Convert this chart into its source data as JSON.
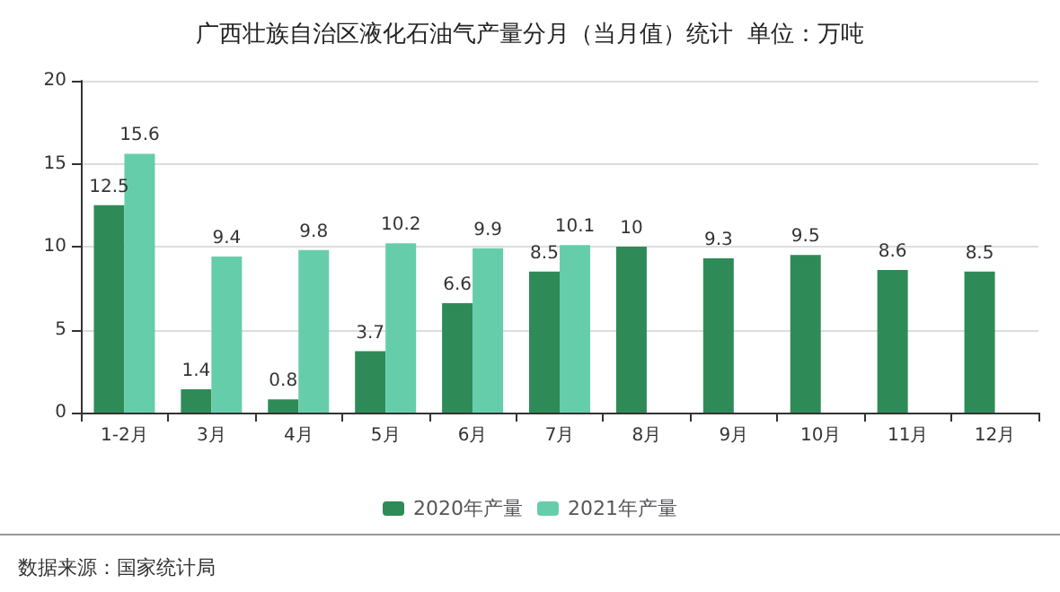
{
  "chart_data": {
    "type": "bar",
    "title": "广西壮族自治区液化石油气产量分月（当月值）统计  单位：万吨",
    "categories": [
      "1-2月",
      "3月",
      "4月",
      "5月",
      "6月",
      "7月",
      "8月",
      "9月",
      "10月",
      "11月",
      "12月"
    ],
    "series": [
      {
        "name": "2020年产量",
        "color": "#2e8b57",
        "values": [
          12.5,
          1.4,
          0.8,
          3.7,
          6.6,
          8.5,
          10,
          9.3,
          9.5,
          8.6,
          8.5
        ]
      },
      {
        "name": "2021年产量",
        "color": "#66cdaa",
        "values": [
          15.6,
          9.4,
          9.8,
          10.2,
          9.9,
          10.1,
          null,
          null,
          null,
          null,
          null
        ]
      }
    ],
    "ylim": [
      0,
      20
    ],
    "yticks": [
      0,
      5,
      10,
      15,
      20
    ],
    "grid": "y",
    "legend": "bottom",
    "data_labels": true,
    "annotations": [
      "数据来源：国家统计局"
    ]
  }
}
